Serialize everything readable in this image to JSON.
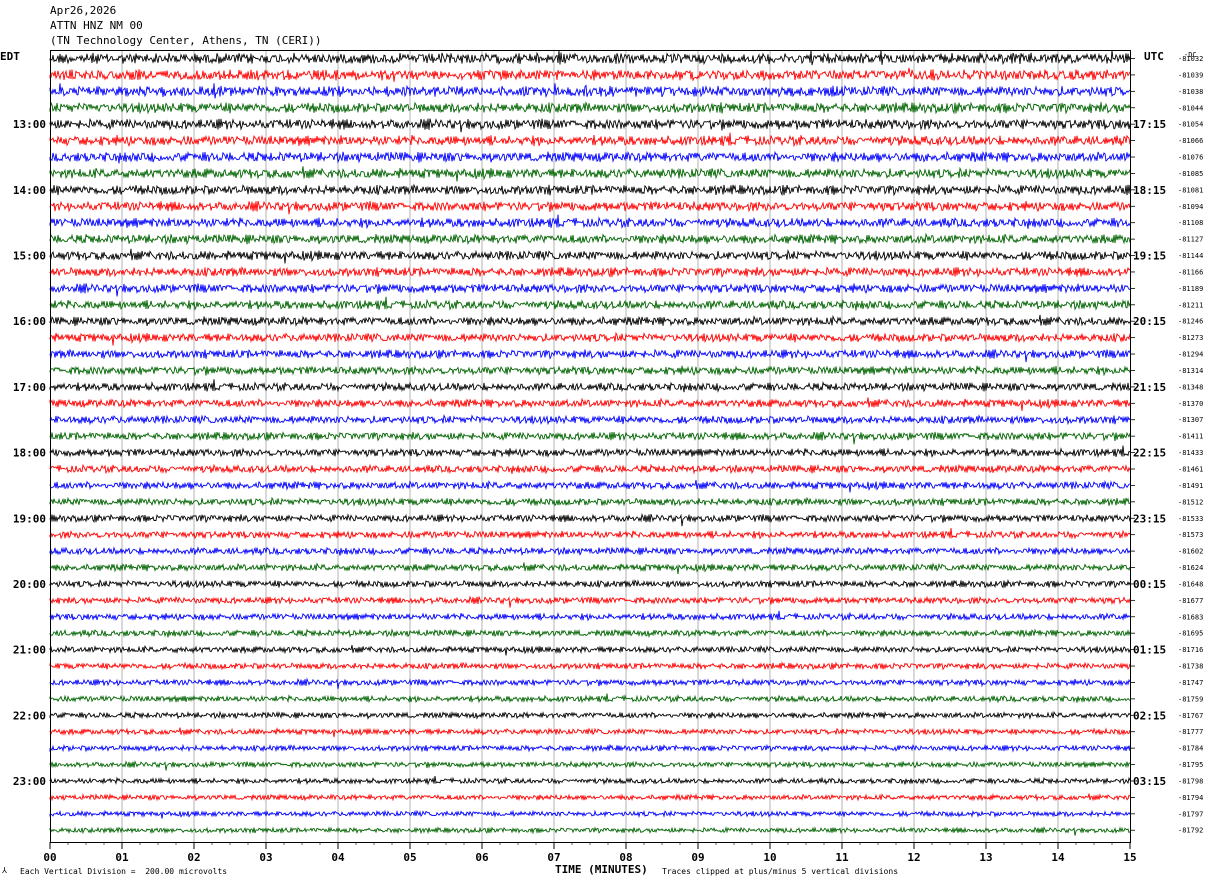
{
  "header": {
    "date": "Apr26,2026",
    "station": "ATTN HNZ NM 00",
    "location": "(TN Technology Center, Athens, TN (CERI))"
  },
  "footer": {
    "scale_note": "Each Vertical Division =  200.00 microvolts",
    "clip_note": "Traces clipped at plus/minus 5 vertical divisions"
  },
  "chart_data": {
    "type": "line",
    "title": "",
    "xlabel": "TIME (MINUTES)",
    "ylabel": "",
    "left_axis_label": "EDT",
    "right_axis_label": "UTC",
    "xlim": [
      0,
      15
    ],
    "x_ticks": [
      "00",
      "01",
      "02",
      "03",
      "04",
      "05",
      "06",
      "07",
      "08",
      "09",
      "10",
      "11",
      "12",
      "13",
      "14",
      "15"
    ],
    "left_hour_labels": [
      "13:00",
      "14:00",
      "15:00",
      "16:00",
      "17:00",
      "18:00",
      "19:00",
      "20:00",
      "21:00",
      "22:00",
      "23:00"
    ],
    "right_hour_labels": [
      "17:15",
      "18:15",
      "19:15",
      "20:15",
      "21:15",
      "22:15",
      "23:15",
      "00:15",
      "01:15",
      "02:15",
      "03:15"
    ],
    "right_corner_label": "-DC",
    "trace_colors": [
      "#000000",
      "#ff0000",
      "#0000ff",
      "#006400"
    ],
    "trace_dc_offsets": [
      -81032,
      -81039,
      -81038,
      -81044,
      -81054,
      -81066,
      -81076,
      -81085,
      -81081,
      -81094,
      -81108,
      -81127,
      -81144,
      -81166,
      -81189,
      -81211,
      -81246,
      -81273,
      -81294,
      -81314,
      -81348,
      -81370,
      -81307,
      -81411,
      -81433,
      -81461,
      -81491,
      -81512,
      -81533,
      -81573,
      -81602,
      -81624,
      -81648,
      -81677,
      -81683,
      -81695,
      -81716,
      -81738,
      -81747,
      -81759,
      -81767,
      -81777,
      -81784,
      -81795,
      -81798,
      -81794,
      -81797,
      -81792
    ],
    "grid": true
  }
}
